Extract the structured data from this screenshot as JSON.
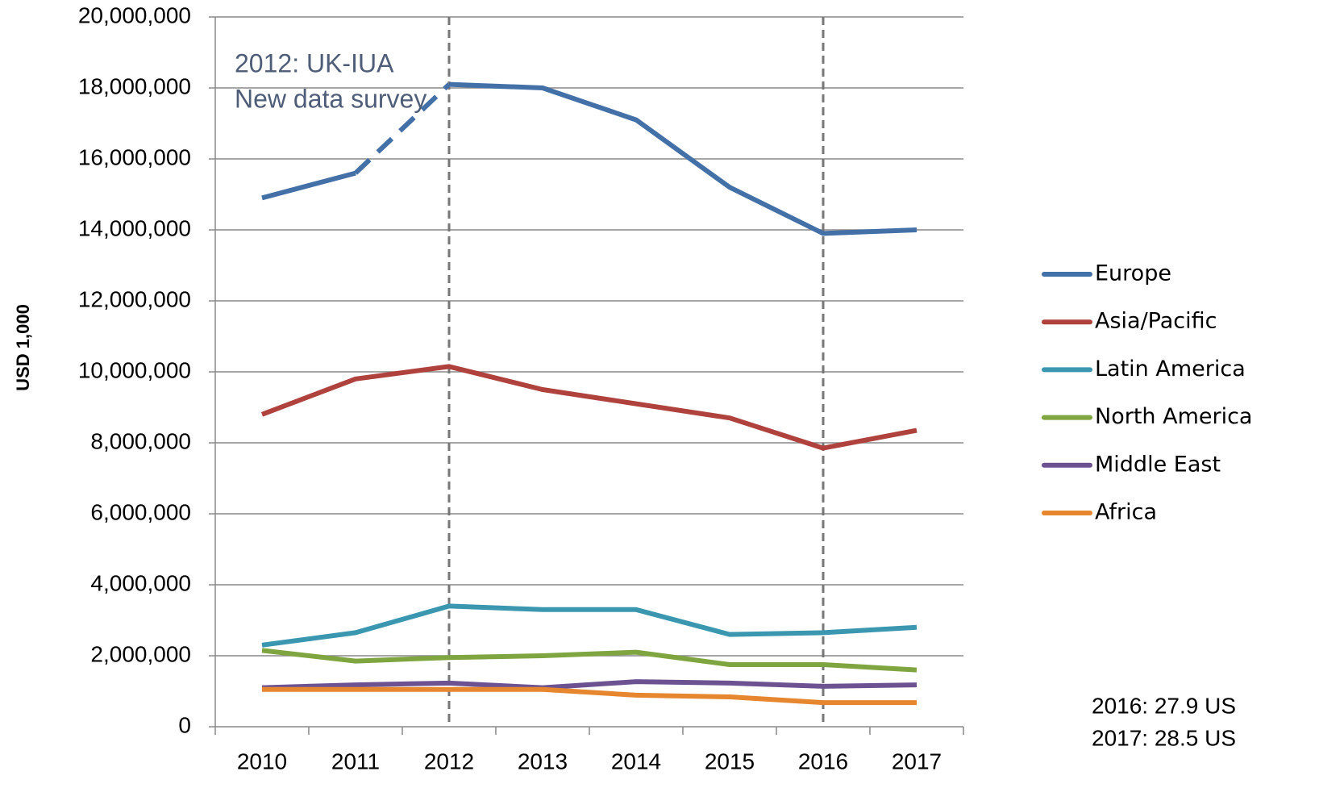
{
  "chart_data": {
    "type": "line",
    "y_label": "USD 1,000",
    "categories": [
      "2010",
      "2011",
      "2012",
      "2013",
      "2014",
      "2015",
      "2016",
      "2017"
    ],
    "series": [
      {
        "name": "Europe",
        "color": "#4470a8",
        "values": [
          14900000,
          15600000,
          18100000,
          18000000,
          17100000,
          15200000,
          13900000,
          14000000
        ],
        "dashed_segment": [
          1,
          2
        ]
      },
      {
        "name": "Asia/Pacific",
        "color": "#b0423e",
        "values": [
          8800000,
          9800000,
          10150000,
          9500000,
          9100000,
          8700000,
          7850000,
          8350000
        ]
      },
      {
        "name": "Latin America",
        "color": "#3b97b0",
        "values": [
          2300000,
          2650000,
          3400000,
          3300000,
          3300000,
          2600000,
          2650000,
          2800000
        ]
      },
      {
        "name": "North America",
        "color": "#7fa541",
        "values": [
          2150000,
          1850000,
          1950000,
          2000000,
          2100000,
          1750000,
          1750000,
          1600000
        ]
      },
      {
        "name": "Middle East",
        "color": "#6d5292",
        "values": [
          1100000,
          1180000,
          1230000,
          1100000,
          1270000,
          1230000,
          1140000,
          1180000
        ]
      },
      {
        "name": "Africa",
        "color": "#e6862f",
        "values": [
          1050000,
          1050000,
          1050000,
          1050000,
          890000,
          840000,
          680000,
          680000
        ]
      }
    ],
    "ylim": [
      0,
      20000000
    ],
    "yticks": [
      0,
      {
        "value": 2000000,
        "label": "2,000,000"
      },
      {
        "value": 4000000,
        "label": "4,000,000"
      },
      {
        "value": 6000000,
        "label": "6,000,000"
      },
      {
        "value": 8000000,
        "label": "8,000,000"
      },
      {
        "value": 10000000,
        "label": "10,000,000"
      },
      {
        "value": 12000000,
        "label": "12,000,000"
      },
      {
        "value": 14000000,
        "label": "14,000,000"
      },
      {
        "value": 16000000,
        "label": "16,000,000"
      },
      {
        "value": 18000000,
        "label": "18,000,000"
      },
      {
        "value": 20000000,
        "label": "20,000,000"
      }
    ],
    "grid": true,
    "reference_lines": [
      "2012",
      "2016"
    ],
    "annotation": [
      "2012: UK-IUA",
      "New data survey"
    ],
    "notes": [
      "2016: 27.9 US",
      "2017: 28.5 US"
    ],
    "legend": "right"
  }
}
